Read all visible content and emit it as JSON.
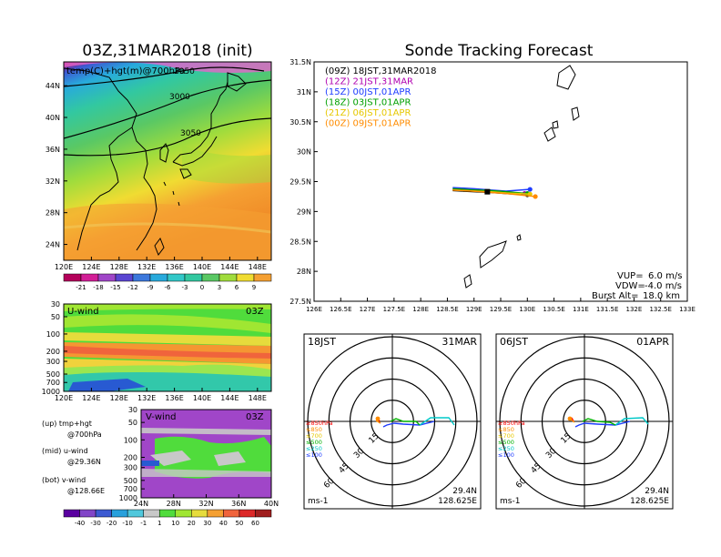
{
  "left": {
    "title": "03Z,31MAR2018 (init)",
    "map_label": "temp(C)+hgt(m)@700hPa",
    "contours": [
      "2950",
      "3000",
      "3050"
    ],
    "lat_ticks": [
      "44N",
      "40N",
      "36N",
      "32N",
      "28N",
      "24N"
    ],
    "lon_ticks": [
      "120E",
      "124E",
      "128E",
      "132E",
      "136E",
      "140E",
      "144E",
      "148E"
    ],
    "temp_colorbar": [
      "-21",
      "-18",
      "-15",
      "-12",
      "-9",
      "-6",
      "-3",
      "0",
      "3",
      "6",
      "9"
    ],
    "u_wind": {
      "label": "U-wind",
      "time": "03Z",
      "p_ticks": [
        "30",
        "50",
        "100",
        "200",
        "300",
        "500",
        "700",
        "1000"
      ]
    },
    "v_wind": {
      "label": "V-wind",
      "time": "03Z",
      "p_ticks": [
        "30",
        "50",
        "100",
        "200",
        "300",
        "500",
        "700",
        "1000"
      ],
      "lat_ticks": [
        "24N",
        "28N",
        "32N",
        "36N",
        "40N"
      ]
    },
    "wind_colorbar": [
      "-40",
      "-30",
      "-20",
      "-10",
      "-1",
      "1",
      "10",
      "20",
      "30",
      "40",
      "50",
      "60"
    ],
    "notes": [
      {
        "k": "(up) tmp+hgt",
        "v": "@700hPa"
      },
      {
        "k": "(mid) u-wind",
        "v": "@29.36N"
      },
      {
        "k": "(bot) v-wind",
        "v": "@128.66E"
      }
    ]
  },
  "tracking": {
    "title": "Sonde Tracking Forecast",
    "lat_ticks": [
      "31.5N",
      "31N",
      "30.5N",
      "30N",
      "29.5N",
      "29N",
      "28.5N",
      "28N",
      "27.5N"
    ],
    "lon_ticks": [
      "126E",
      "126.5E",
      "127E",
      "127.5E",
      "128E",
      "128.5E",
      "129E",
      "129.5E",
      "130E",
      "130.5E",
      "131E",
      "131.5E",
      "132E",
      "132.5E",
      "133E"
    ],
    "legend": [
      {
        "label": "(09Z)  18JST,31MAR2018",
        "color": "#000000"
      },
      {
        "label": "(12Z)  21JST,31MAR",
        "color": "#b000b0"
      },
      {
        "label": "(15Z)  00JST,01APR",
        "color": "#1e3cff"
      },
      {
        "label": "(18Z)  03JST,01APR",
        "color": "#00a000"
      },
      {
        "label": "(21Z)  06JST,01APR",
        "color": "#e6c800"
      },
      {
        "label": "(00Z)  09JST,01APR",
        "color": "#ff8c00"
      }
    ],
    "params": [
      {
        "k": "VUP=",
        "v": "6.0  m/s"
      },
      {
        "k": "VDW=",
        "v": "-4.0  m/s"
      },
      {
        "k": "Burst Alt=",
        "v": "18.0  km"
      }
    ]
  },
  "polar": [
    {
      "time": "18JST",
      "date": "31MAR",
      "ring_labels": [
        "15",
        "30",
        "45",
        "60"
      ],
      "unit": "ms-1",
      "lat": "29.4N",
      "lon": "128.625E",
      "levels": [
        {
          "t": "≥850hPa",
          "c": "#ff0000"
        },
        {
          "t": "≤850",
          "c": "#ff8c00"
        },
        {
          "t": "≤700",
          "c": "#e6c800"
        },
        {
          "t": "≤500",
          "c": "#00b000"
        },
        {
          "t": "≤250",
          "c": "#00c8c8"
        },
        {
          "t": "≤100",
          "c": "#1e3cff"
        }
      ]
    },
    {
      "time": "06JST",
      "date": "01APR",
      "ring_labels": [
        "15",
        "30",
        "45",
        "60"
      ],
      "unit": "ms-1",
      "lat": "29.4N",
      "lon": "128.625E",
      "levels": [
        {
          "t": "≥850hPa",
          "c": "#ff0000"
        },
        {
          "t": "≤850",
          "c": "#ff8c00"
        },
        {
          "t": "≤700",
          "c": "#e6c800"
        },
        {
          "t": "≤500",
          "c": "#00b000"
        },
        {
          "t": "≤250",
          "c": "#00c8c8"
        },
        {
          "t": "≤100",
          "c": "#1e3cff"
        }
      ]
    }
  ],
  "chart_data": [
    {
      "type": "heatmap",
      "title": "03Z,31MAR2018 (init)",
      "variable": "temp(C)+hgt(m)@700hPa",
      "xlim": [
        120,
        150
      ],
      "ylim": [
        22,
        47
      ],
      "color_levels": [
        -21,
        -18,
        -15,
        -12,
        -9,
        -6,
        -3,
        0,
        3,
        6,
        9
      ],
      "contours": [
        2950,
        3000,
        3050
      ]
    },
    {
      "type": "heatmap",
      "title": "U-wind",
      "xlim": [
        120,
        150
      ],
      "ylim": [
        1000,
        30
      ],
      "yscale": "log"
    },
    {
      "type": "heatmap",
      "title": "V-wind",
      "xlim": [
        24,
        40
      ],
      "ylim": [
        1000,
        30
      ],
      "yscale": "log",
      "color_levels": [
        -40,
        -30,
        -20,
        -10,
        -1,
        1,
        10,
        20,
        30,
        40,
        50,
        60
      ]
    },
    {
      "type": "line",
      "title": "Sonde Tracking Forecast",
      "xlim": [
        126,
        133
      ],
      "ylim": [
        27.5,
        31.5
      ],
      "series": [
        {
          "name": "(09Z)  18JST,31MAR2018",
          "x": [
            128.6,
            129.0,
            129.3,
            129.6,
            130.0
          ],
          "y": [
            29.35,
            29.33,
            29.32,
            29.3,
            29.28
          ]
        },
        {
          "name": "(12Z)  21JST,31MAR",
          "x": [
            128.6,
            129.0,
            129.3,
            129.6,
            129.95
          ],
          "y": [
            29.37,
            29.35,
            29.33,
            29.31,
            29.3
          ]
        },
        {
          "name": "(15Z)  00JST,01APR",
          "x": [
            128.6,
            129.0,
            129.3,
            129.6,
            130.05
          ],
          "y": [
            29.4,
            29.38,
            29.36,
            29.34,
            29.37
          ]
        },
        {
          "name": "(18Z)  03JST,01APR",
          "x": [
            128.6,
            129.0,
            129.3,
            129.6,
            130.0
          ],
          "y": [
            29.38,
            29.36,
            29.35,
            29.33,
            29.3
          ]
        },
        {
          "name": "(21Z)  06JST,01APR",
          "x": [
            128.6,
            129.0,
            129.3,
            129.6,
            130.05
          ],
          "y": [
            29.36,
            29.34,
            29.33,
            29.31,
            29.29
          ]
        },
        {
          "name": "(00Z)  09JST,01APR",
          "x": [
            128.6,
            129.0,
            129.3,
            129.6,
            130.15
          ],
          "y": [
            29.36,
            29.34,
            29.32,
            29.3,
            29.25
          ]
        }
      ]
    }
  ]
}
